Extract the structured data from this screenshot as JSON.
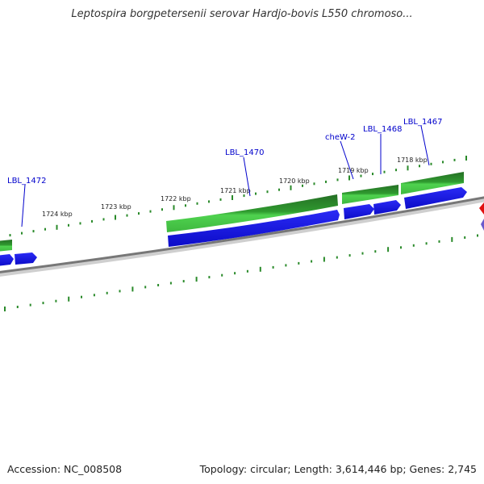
{
  "title": "Leptospira borgpetersenii serovar Hardjo-bovis L550 chromoso...",
  "accession": "Accession: NC_008508",
  "summary": "Topology: circular; Length: 3,614,446 bp; Genes: 2,745",
  "ruler_labels": [
    "1718 kbp",
    "1719 kbp",
    "1720 kbp",
    "1721 kbp",
    "1722 kbp",
    "1723 kbp",
    "1724 kbp"
  ],
  "gene_labels": [
    "LBL_1467",
    "LBL_1468",
    "cheW-2",
    "LBL_1470",
    "LBL_1472"
  ],
  "colors": {
    "backbone": "#8c8c8c",
    "tick": "#2a8a2a",
    "cds_dark": "#2e8b2e",
    "cds_light": "#49d049",
    "gene": "#1414e6",
    "gene_label": "#0000cc",
    "other_feature": "#e01010"
  }
}
